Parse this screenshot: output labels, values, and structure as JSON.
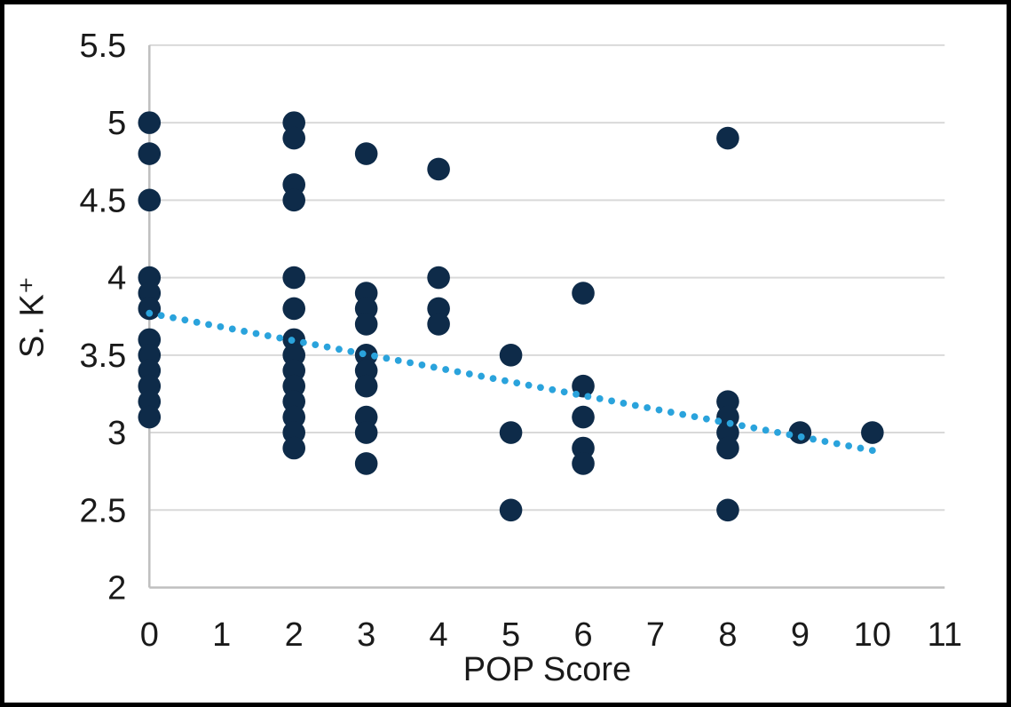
{
  "chart_data": {
    "type": "scatter",
    "title": "",
    "xlabel": "POP Score",
    "ylabel": "S. K⁺",
    "xlim": [
      0,
      11
    ],
    "ylim": [
      2,
      5.5
    ],
    "x_ticks": [
      0,
      1,
      2,
      3,
      4,
      5,
      6,
      7,
      8,
      9,
      10,
      11
    ],
    "y_ticks": [
      2,
      2.5,
      3,
      3.5,
      4,
      4.5,
      5,
      5.5
    ],
    "grid": true,
    "legend": "none",
    "points": [
      [
        0,
        5.0
      ],
      [
        0,
        4.8
      ],
      [
        0,
        4.5
      ],
      [
        0,
        4.0
      ],
      [
        0,
        3.9
      ],
      [
        0,
        3.8
      ],
      [
        0,
        3.6
      ],
      [
        0,
        3.5
      ],
      [
        0,
        3.4
      ],
      [
        0,
        3.3
      ],
      [
        0,
        3.2
      ],
      [
        0,
        3.1
      ],
      [
        2,
        5.0
      ],
      [
        2,
        4.9
      ],
      [
        2,
        4.6
      ],
      [
        2,
        4.5
      ],
      [
        2,
        4.0
      ],
      [
        2,
        3.8
      ],
      [
        2,
        3.6
      ],
      [
        2,
        3.5
      ],
      [
        2,
        3.4
      ],
      [
        2,
        3.3
      ],
      [
        2,
        3.2
      ],
      [
        2,
        3.1
      ],
      [
        2,
        3.0
      ],
      [
        2,
        2.9
      ],
      [
        3,
        4.8
      ],
      [
        3,
        3.9
      ],
      [
        3,
        3.8
      ],
      [
        3,
        3.7
      ],
      [
        3,
        3.5
      ],
      [
        3,
        3.4
      ],
      [
        3,
        3.3
      ],
      [
        3,
        3.1
      ],
      [
        3,
        3.0
      ],
      [
        3,
        2.8
      ],
      [
        4,
        4.7
      ],
      [
        4,
        4.0
      ],
      [
        4,
        3.8
      ],
      [
        4,
        3.7
      ],
      [
        5,
        3.5
      ],
      [
        5,
        3.0
      ],
      [
        5,
        2.5
      ],
      [
        6,
        3.9
      ],
      [
        6,
        3.3
      ],
      [
        6,
        3.1
      ],
      [
        6,
        2.9
      ],
      [
        6,
        2.8
      ],
      [
        8,
        4.9
      ],
      [
        8,
        3.2
      ],
      [
        8,
        3.1
      ],
      [
        8,
        3.0
      ],
      [
        8,
        2.9
      ],
      [
        8,
        2.5
      ],
      [
        9,
        3.0
      ],
      [
        10,
        3.0
      ]
    ],
    "trendline": {
      "style": "dotted",
      "start": {
        "x": 0,
        "y": 3.77
      },
      "end": {
        "x": 10,
        "y": 2.885
      },
      "dot_count": 62
    },
    "colors": {
      "points": "#0e2b49",
      "trendline": "#2aa3dc",
      "gridline": "#d9d9d9",
      "axis_line": "#bfbfbf",
      "text": "#1a1a1a",
      "frame_border": "#000000",
      "background": "#ffffff"
    }
  }
}
